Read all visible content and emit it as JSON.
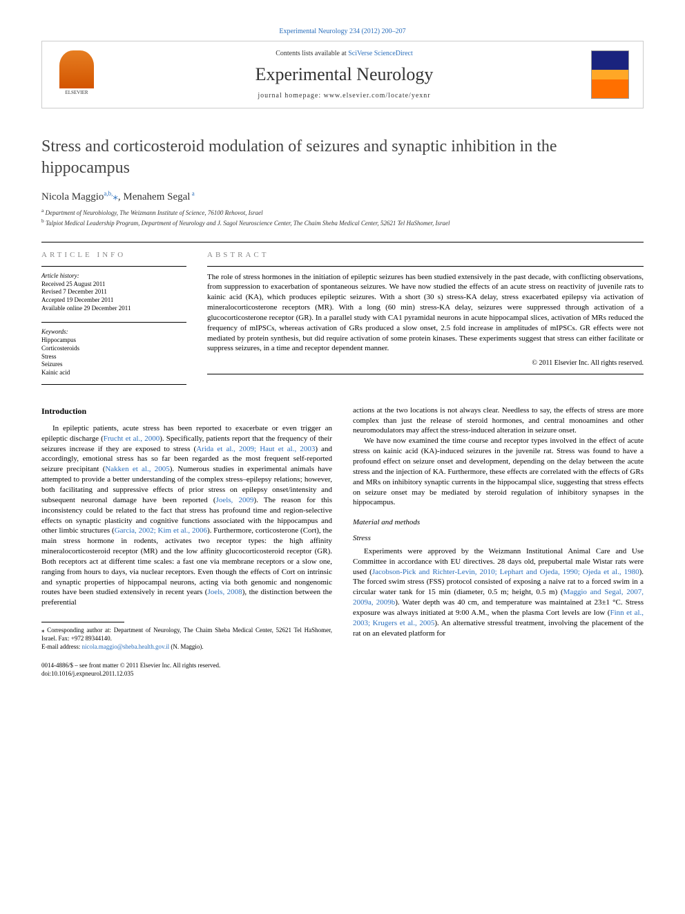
{
  "top_link": {
    "prefix": "",
    "journal_issue": "Experimental Neurology 234 (2012) 200–207"
  },
  "header": {
    "contents_prefix": "Contents lists available at ",
    "contents_source": "SciVerse ScienceDirect",
    "journal_name": "Experimental Neurology",
    "homepage_label": "journal homepage: ",
    "homepage_url": "www.elsevier.com/locate/yexnr",
    "publisher_logo_text": "ELSEVIER"
  },
  "article": {
    "title": "Stress and corticosteroid modulation of seizures and synaptic inhibition in the hippocampus",
    "authors_html": "Nicola Maggio",
    "author1_sup": "a,b,",
    "author1_star": "⁎",
    "author2": ", Menahem Segal",
    "author2_sup": " a",
    "affiliations": [
      {
        "sup": "a",
        "text": " Department of Neurobiology, The Weizmann Institute of Science, 76100 Rehovot, Israel"
      },
      {
        "sup": "b",
        "text": " Talpiot Medical Leadership Program, Department of Neurology and J. Sagol Neuroscience Center, The Chaim Sheba Medical Center, 52621 Tel HaShomer, Israel"
      }
    ]
  },
  "info": {
    "heading": "article info",
    "history_label": "Article history:",
    "history": [
      "Received 25 August 2011",
      "Revised 7 December 2011",
      "Accepted 19 December 2011",
      "Available online 29 December 2011"
    ],
    "keywords_label": "Keywords:",
    "keywords": [
      "Hippocampus",
      "Corticosteroids",
      "Stress",
      "Seizures",
      "Kainic acid"
    ]
  },
  "abstract": {
    "heading": "abstract",
    "text": "The role of stress hormones in the initiation of epileptic seizures has been studied extensively in the past decade, with conflicting observations, from suppression to exacerbation of spontaneous seizures. We have now studied the effects of an acute stress on reactivity of juvenile rats to kainic acid (KA), which produces epileptic seizures. With a short (30 s) stress-KA delay, stress exacerbated epilepsy via activation of mineralocorticosterone receptors (MR). With a long (60 min) stress-KA delay, seizures were suppressed through activation of a glucocorticosterone receptor (GR). In a parallel study with CA1 pyramidal neurons in acute hippocampal slices, activation of MRs reduced the frequency of mIPSCs, whereas activation of GRs produced a slow onset, 2.5 fold increase in amplitudes of mIPSCs. GR effects were not mediated by protein synthesis, but did require activation of some protein kinases. These experiments suggest that stress can either facilitate or suppress seizures, in a time and receptor dependent manner.",
    "copyright": "© 2011 Elsevier Inc. All rights reserved."
  },
  "body": {
    "intro_heading": "Introduction",
    "intro_p1_a": "In epileptic patients, acute stress has been reported to exacerbate or even trigger an epileptic discharge (",
    "intro_c1": "Frucht et al., 2000",
    "intro_p1_b": "). Specifically, patients report that the frequency of their seizures increase if they are exposed to stress (",
    "intro_c2": "Arida et al., 2009; Haut et al., 2003",
    "intro_p1_c": ") and accordingly, emotional stress has so far been regarded as the most frequent self-reported seizure precipitant (",
    "intro_c3": "Nakken et al., 2005",
    "intro_p1_d": "). Numerous studies in experimental animals have attempted to provide a better understanding of the complex stress–epilepsy relations; however, both facilitating and suppressive effects of prior stress on epilepsy onset/intensity and subsequent neuronal damage have been reported (",
    "intro_c4": "Joels, 2009",
    "intro_p1_e": "). The reason for this inconsistency could be related to the fact that stress has profound time and region-selective effects on synaptic plasticity and cognitive functions associated with the hippocampus and other limbic structures (",
    "intro_c5": "Garcia, 2002; Kim et al., 2006",
    "intro_p1_f": "). Furthermore, corticosterone (Cort), the main stress hormone in rodents, activates two receptor types: the high affinity mineralocorticosteroid receptor (MR) and the low affinity glucocorticosteroid receptor (GR). Both receptors act at different time scales: a fast one via membrane receptors or a slow one, ranging from hours to days, via nuclear receptors. Even though the effects of Cort on intrinsic and synaptic properties of hippocampal neurons, acting via both genomic and nongenomic routes have been studied extensively in recent years (",
    "intro_c6": "Joels, 2008",
    "intro_p1_g": "), the distinction between the preferential",
    "col2_p1": "actions at the two locations is not always clear. Needless to say, the effects of stress are more complex than just the release of steroid hormones, and central monoamines and other neuromodulators may affect the stress-induced alteration in seizure onset.",
    "col2_p2": "We have now examined the time course and receptor types involved in the effect of acute stress on kainic acid (KA)-induced seizures in the juvenile rat. Stress was found to have a profound effect on seizure onset and development, depending on the delay between the acute stress and the injection of KA. Furthermore, these effects are correlated with the effects of GRs and MRs on inhibitory synaptic currents in the hippocampal slice, suggesting that stress effects on seizure onset may be mediated by steroid regulation of inhibitory synapses in the hippocampus.",
    "methods_heading": "Material and methods",
    "stress_heading": "Stress",
    "methods_p1_a": "Experiments were approved by the Weizmann Institutional Animal Care and Use Committee in accordance with EU directives. 28 days old, prepubertal male Wistar rats were used (",
    "methods_c1": "Jacobson-Pick and Richter-Levin, 2010; Lephart and Ojeda, 1990; Ojeda et al., 1980",
    "methods_p1_b": "). The forced swim stress (FSS) protocol consisted of exposing a naive rat to a forced swim in a circular water tank for 15 min (diameter, 0.5 m; height, 0.5 m) (",
    "methods_c2": "Maggio and Segal, 2007, 2009a, 2009b",
    "methods_p1_c": "). Water depth was 40 cm, and temperature was maintained at 23±1 °C. Stress exposure was always initiated at 9:00 A.M., when the plasma Cort levels are low (",
    "methods_c3": "Finn et al., 2003; Krugers et al., 2005",
    "methods_p1_d": "). An alternative stressful treatment, involving the placement of the rat on an elevated platform for"
  },
  "footnote": {
    "corr_label": "⁎ Corresponding author at: Department of Neurology, The Chaim Sheba Medical Center, 52621 Tel HaShomer, Israel. Fax: +972 89344140.",
    "email_label": "E-mail address: ",
    "email": "nicola.maggio@sheba.health.gov.il",
    "email_suffix": " (N. Maggio)."
  },
  "bottom": {
    "line1": "0014-4886/$ – see front matter © 2011 Elsevier Inc. All rights reserved.",
    "line2": "doi:10.1016/j.expneurol.2011.12.035"
  },
  "colors": {
    "link": "#2a6ebb",
    "text": "#000000",
    "heading_gray": "#888888",
    "border": "#000000"
  }
}
